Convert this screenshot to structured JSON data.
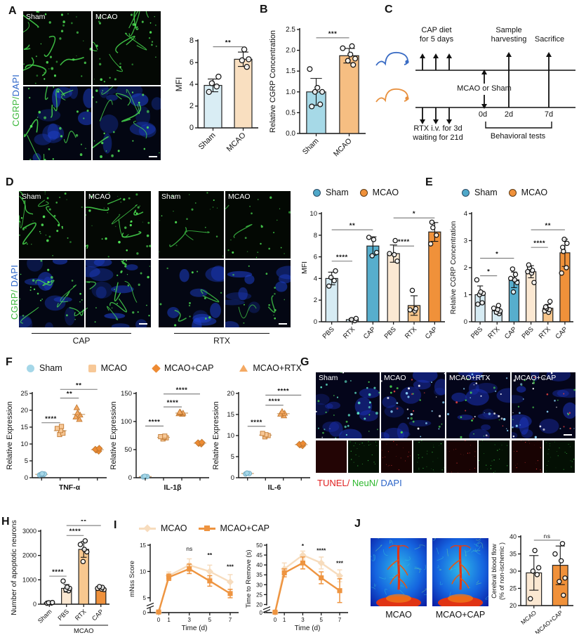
{
  "colors": {
    "sham_light_blue": "#d6ebf3",
    "sham_solid_blue": "#57aecd",
    "sham_legend_blue": "#4fa8c9",
    "mcao_pale_orange": "#fbe8d2",
    "mcao_mid_orange": "#f7c68c",
    "mcao_solid_orange": "#f0913a",
    "line_light": "#f7dcbd",
    "line_dark": "#ee9440",
    "cgrp_green": "#3cb83c",
    "dapi_blue": "#2b64c8",
    "tunel_red": "#e02020",
    "neun_green": "#2db82d",
    "sig_line_gray": "#777",
    "axis_black": "#111"
  },
  "panels": {
    "A": {
      "label": "A",
      "img_labels": [
        "Sham",
        "MCAO"
      ],
      "side": {
        "cgrp": "CGRP/",
        "dapi": "DAPI"
      }
    },
    "B": {
      "label": "B"
    },
    "C": {
      "label": "C",
      "texts": {
        "cap1": "CAP diet",
        "cap2": "for 5 days",
        "sample1": "Sample",
        "sample2": "harvesting",
        "sacrifice": "Sacrifice",
        "mcao": "MCAO or Sham",
        "rtx1": "RTX i.v. for 3d",
        "rtx2": "waiting for 21d",
        "d0": "0d",
        "d2": "2d",
        "d7": "7d",
        "behav": "Behavioral tests"
      }
    },
    "D": {
      "label": "D",
      "img_labels": [
        "Sham",
        "MCAO",
        "Sham",
        "MCAO"
      ],
      "side": {
        "cgrp": "CGRP/",
        "dapi": "DAPI"
      },
      "groups": [
        {
          "label": "CAP"
        },
        {
          "label": "RTX"
        }
      ]
    },
    "E": {
      "label": "E"
    },
    "F": {
      "label": "F"
    },
    "G": {
      "label": "G",
      "img_labels": [
        "Sham",
        "MCAO",
        "MCAO+RTX",
        "MCAO+CAP"
      ],
      "caption": {
        "tunel": "TUNEL/",
        "neun": "NeuN/",
        "dapi": "DAPI"
      }
    },
    "H": {
      "label": "H"
    },
    "I": {
      "label": "I"
    },
    "J": {
      "label": "J",
      "img_labels": [
        "MCAO",
        "MCAO+CAP"
      ]
    }
  },
  "legends": {
    "d": {
      "items": [
        {
          "label": "Sham",
          "shape": "circle",
          "color": "#4fa8c9",
          "border": "#2b4a63"
        },
        {
          "label": "MCAO",
          "shape": "circle",
          "color": "#f0913a",
          "border": "#5d3a14"
        }
      ]
    },
    "e": {
      "items": [
        {
          "label": "Sham",
          "shape": "circle",
          "color": "#4fa8c9",
          "border": "#2b4a63"
        },
        {
          "label": "MCAO",
          "shape": "circle",
          "color": "#f0913a",
          "border": "#5d3a14"
        }
      ]
    },
    "f": {
      "items": [
        {
          "label": "Sham",
          "shape": "circle",
          "color": "#a5d7e8"
        },
        {
          "label": "MCAO",
          "shape": "square",
          "color": "#f7c897"
        },
        {
          "label": "MCAO+CAP",
          "shape": "diamond",
          "color": "#ee8b33"
        },
        {
          "label": "MCAO+RTX",
          "shape": "triangle",
          "color": "#f4a963"
        }
      ]
    },
    "i": {
      "items": [
        {
          "label": "MCAO",
          "shape": "line-diamond",
          "color": "#f7dcbd"
        },
        {
          "label": "MCAO+CAP",
          "shape": "line-square",
          "color": "#ee9440"
        }
      ]
    }
  },
  "chart_data": [
    {
      "id": "A_MFI",
      "type": "bar",
      "ylabel": "MFI",
      "ylim": [
        0,
        8
      ],
      "yticks": [
        0,
        2,
        4,
        6,
        8
      ],
      "categories": [
        "Sham",
        "MCAO"
      ],
      "values": [
        3.9,
        6.3
      ],
      "points": [
        [
          3.3,
          3.8,
          4.1,
          4.7
        ],
        [
          5.6,
          6.2,
          6.3,
          7.2
        ]
      ],
      "colors": [
        "#d9edf4",
        "#f9dfc0"
      ],
      "xrot": -45,
      "ptR": 3.6,
      "catFont": 11,
      "tickFont": 11,
      "ylabelFont": 12,
      "sig": [
        {
          "a": 0,
          "b": 1,
          "y": 7.45,
          "label": "**"
        }
      ],
      "margins": {
        "l": 32,
        "r": 8,
        "t": 18,
        "b": 50
      }
    },
    {
      "id": "B_CGRP",
      "type": "bar",
      "ylabel": "Relative CGRP Concentration",
      "ylim": [
        0,
        2.5
      ],
      "yticks": [
        "0.0",
        "0.5",
        "1.0",
        "1.5",
        "2.0",
        "2.5"
      ],
      "categories": [
        "Sham",
        "MCAO"
      ],
      "values": [
        1.0,
        1.87
      ],
      "points": [
        [
          0.65,
          0.7,
          1.0,
          1.0,
          1.1,
          1.55
        ],
        [
          1.65,
          1.75,
          1.8,
          1.9,
          2.05,
          2.1
        ]
      ],
      "colors": [
        "#a6d9e7",
        "#f6be82"
      ],
      "xrot": -45,
      "ptR": 3.4,
      "catFont": 10.5,
      "tickFont": 10,
      "ylabelFont": 11,
      "sig": [
        {
          "a": 0,
          "b": 1,
          "y": 2.3,
          "label": "***"
        }
      ],
      "margins": {
        "l": 44,
        "r": 12,
        "t": 14,
        "b": 50
      }
    },
    {
      "id": "D_MFI",
      "type": "bar",
      "ylabel": "MFI",
      "ylim": [
        0,
        10
      ],
      "yticks": [
        0,
        2,
        4,
        6,
        8,
        10
      ],
      "categories": [
        "PBS",
        "RTX",
        "CAP",
        "PBS",
        "RTX",
        "CAP"
      ],
      "values": [
        4.0,
        0.2,
        7.0,
        6.3,
        1.5,
        8.3
      ],
      "points": [
        [
          3.3,
          3.8,
          4.1,
          4.7
        ],
        [
          0.1,
          0.2,
          0.3
        ],
        [
          6.1,
          6.4,
          7.6,
          7.8
        ],
        [
          5.6,
          6.2,
          6.3,
          7.5
        ],
        [
          1.0,
          1.1,
          1.2,
          2.9
        ],
        [
          7.2,
          8.0,
          8.7,
          9.2
        ]
      ],
      "colors": [
        "#d6ebf3",
        "#d6ebf3",
        "#57aecd",
        "#fbe8d2",
        "#f7c68c",
        "#f0913a"
      ],
      "xrot": -45,
      "sig": [
        {
          "a": 0,
          "b": 1,
          "y": 5.6,
          "label": "****"
        },
        {
          "a": 0,
          "b": 2,
          "y": 8.5,
          "label": "**"
        },
        {
          "a": 3,
          "b": 4,
          "y": 7.0,
          "label": "****"
        },
        {
          "a": 3,
          "b": 5,
          "y": 9.6,
          "label": "*"
        }
      ],
      "margins": {
        "l": 30,
        "r": 6,
        "t": 14,
        "b": 44
      }
    },
    {
      "id": "E_CGRP",
      "type": "bar",
      "ylabel": "Relative CGRP Concentration",
      "ylim": [
        0,
        4
      ],
      "yticks": [
        0,
        1,
        2,
        3,
        4
      ],
      "categories": [
        "PBS",
        "RTX",
        "CAP",
        "PBS",
        "RTX",
        "CAP"
      ],
      "values": [
        1.0,
        0.4,
        1.55,
        1.85,
        0.5,
        2.55
      ],
      "points": [
        [
          0.65,
          0.7,
          1.0,
          1.05,
          1.1,
          1.55
        ],
        [
          0.3,
          0.35,
          0.4,
          0.45,
          0.5,
          0.6
        ],
        [
          1.1,
          1.45,
          1.55,
          1.6,
          1.75,
          1.95
        ],
        [
          1.45,
          1.8,
          1.85,
          1.9,
          2.0,
          2.1
        ],
        [
          0.35,
          0.4,
          0.45,
          0.5,
          0.55,
          0.75
        ],
        [
          1.8,
          2.0,
          2.6,
          2.75,
          2.9,
          3.05
        ]
      ],
      "colors": [
        "#d6ebf3",
        "#d6ebf3",
        "#57aecd",
        "#fbe8d2",
        "#f7c68c",
        "#f0913a"
      ],
      "xrot": -45,
      "sig": [
        {
          "a": 0,
          "b": 1,
          "y": 1.7,
          "label": "*"
        },
        {
          "a": 0,
          "b": 2,
          "y": 2.35,
          "label": "*"
        },
        {
          "a": 3,
          "b": 4,
          "y": 2.75,
          "label": "****"
        },
        {
          "a": 3,
          "b": 5,
          "y": 3.4,
          "label": "**"
        }
      ],
      "margins": {
        "l": 32,
        "r": 8,
        "t": 14,
        "b": 44
      },
      "ylabelFont": 10
    },
    {
      "id": "F_TNF",
      "type": "scatter",
      "ylabel": "Relative Expression",
      "xlabel": "TNF-α",
      "ylim": [
        0,
        25
      ],
      "yticks": [
        0,
        5,
        10,
        15,
        20,
        25
      ],
      "categories": [
        "Sham",
        "MCAO",
        "MCAO+RTX",
        "MCAO+CAP"
      ],
      "points": [
        [
          0.8,
          0.9,
          1.0,
          1.1,
          1.2
        ],
        [
          12.8,
          13.2,
          14.0,
          14.6,
          15.2
        ],
        [
          17.3,
          18.0,
          18.6,
          19.2,
          20.8
        ],
        [
          7.9,
          8.2,
          8.4,
          8.7
        ]
      ],
      "markers": [
        "circle",
        "square",
        "triangle",
        "diamond"
      ],
      "mcolors": [
        "#a5d7e8",
        "#f7c897",
        "#f4a963",
        "#ee8b33"
      ],
      "sig": [
        {
          "a": 0,
          "b": 1,
          "y": 16.3,
          "label": "****"
        },
        {
          "a": 1,
          "b": 2,
          "y": 23.6,
          "label": "**"
        },
        {
          "a": 1,
          "b": 3,
          "y": 26.2,
          "label": "**"
        }
      ],
      "margins": {
        "l": 38,
        "r": 6,
        "t": 16,
        "b": 34
      },
      "ylabelFont": 11
    },
    {
      "id": "F_IL1B",
      "type": "scatter",
      "ylabel": "Relative Expression",
      "xlabel": "IL-1β",
      "ylim": [
        0,
        150
      ],
      "yticks": [
        0,
        50,
        100,
        150
      ],
      "categories": [
        "Sham",
        "MCAO",
        "MCAO+RTX",
        "MCAO+CAP"
      ],
      "points": [
        [
          1.5,
          2,
          2.5
        ],
        [
          69,
          71,
          72,
          73,
          74
        ],
        [
          113,
          114,
          115,
          116,
          117
        ],
        [
          60,
          61,
          62,
          63
        ]
      ],
      "markers": [
        "circle",
        "square",
        "triangle",
        "diamond"
      ],
      "mcolors": [
        "#a5d7e8",
        "#f7c897",
        "#f4a963",
        "#ee8b33"
      ],
      "sig": [
        {
          "a": 0,
          "b": 1,
          "y": 92,
          "label": "****"
        },
        {
          "a": 1,
          "b": 2,
          "y": 126,
          "label": "****"
        },
        {
          "a": 1,
          "b": 3,
          "y": 149,
          "label": "****"
        }
      ],
      "margins": {
        "l": 38,
        "r": 6,
        "t": 16,
        "b": 34
      },
      "ylabelFont": 11
    },
    {
      "id": "F_IL6",
      "type": "scatter",
      "ylabel": "Relative Expression",
      "xlabel": "IL-6",
      "ylim": [
        0,
        20
      ],
      "yticks": [
        0,
        5,
        10,
        15,
        20
      ],
      "categories": [
        "Sham",
        "MCAO",
        "MCAO+RTX",
        "MCAO+CAP"
      ],
      "points": [
        [
          0.9,
          1.0,
          1.1
        ],
        [
          9.7,
          10,
          10.2,
          10.5
        ],
        [
          14.7,
          15.1,
          15.3,
          15.7
        ],
        [
          7.6,
          7.8,
          7.9,
          8.1
        ]
      ],
      "markers": [
        "circle",
        "square",
        "triangle",
        "diamond"
      ],
      "mcolors": [
        "#a5d7e8",
        "#f7c897",
        "#f4a963",
        "#ee8b33"
      ],
      "sig": [
        {
          "a": 0,
          "b": 1,
          "y": 12.2,
          "label": "****"
        },
        {
          "a": 1,
          "b": 2,
          "y": 17.2,
          "label": "****"
        },
        {
          "a": 1,
          "b": 3,
          "y": 19.6,
          "label": "****"
        }
      ],
      "margins": {
        "l": 38,
        "r": 6,
        "t": 16,
        "b": 34
      },
      "ylabelFont": 11
    },
    {
      "id": "H_APOP",
      "type": "bar",
      "ylabel": "Number of apoptotic neurons",
      "ylim": [
        0,
        3000
      ],
      "yticks": [
        0,
        1000,
        2000,
        3000
      ],
      "categories": [
        "Sham",
        "PBS",
        "RTX",
        "CAP"
      ],
      "values": [
        60,
        650,
        2250,
        650
      ],
      "points": [
        [
          40,
          50,
          60,
          70
        ],
        [
          550,
          600,
          650,
          700,
          950
        ],
        [
          1750,
          2150,
          2250,
          2450,
          2600
        ],
        [
          600,
          620,
          650,
          690,
          720
        ]
      ],
      "colors": [
        "#1c1c1c",
        "#fbe8d2",
        "#f8c88f",
        "#ef913c"
      ],
      "xrot": -45,
      "catFont": 9,
      "group": {
        "from": 1,
        "to": 3,
        "label": "MCAO"
      },
      "sig": [
        {
          "a": 0,
          "b": 1,
          "y": 1150,
          "label": "****"
        },
        {
          "a": 1,
          "b": 2,
          "y": 2820,
          "label": "****"
        },
        {
          "a": 1,
          "b": 3,
          "y": 3230,
          "label": "**"
        }
      ],
      "margins": {
        "l": 44,
        "r": 6,
        "t": 16,
        "b": 48
      },
      "tickFont": 9,
      "ylabelFont": 10.5
    },
    {
      "id": "I_MNSS",
      "type": "line",
      "ylabel": "mNss Score",
      "xlabel": "Time (d)",
      "ylim": [
        0,
        15
      ],
      "yticks": [
        0,
        5,
        10,
        15
      ],
      "ybreak": {
        "below": 5,
        "frac": 0.22
      },
      "x": [
        0,
        1,
        3,
        5,
        7
      ],
      "series": [
        {
          "name": "MCAO",
          "color": "#f7dcbd",
          "marker": "diamond",
          "values": [
            0.2,
            9.2,
            11.2,
            10.0,
            8.0
          ],
          "err": [
            0.2,
            0.7,
            1.2,
            1.2,
            1.4
          ]
        },
        {
          "name": "MCAO+CAP",
          "color": "#ee9440",
          "marker": "square",
          "values": [
            0.2,
            8.9,
            10.5,
            8.2,
            5.8
          ],
          "err": [
            0.2,
            0.6,
            0.9,
            1.0,
            0.8
          ]
        }
      ],
      "sig": [
        {
          "x": 3,
          "y": 13.9,
          "label": "ns"
        },
        {
          "x": 5,
          "y": 12.7,
          "label": "**"
        },
        {
          "x": 7,
          "y": 10.5,
          "label": "***"
        }
      ],
      "margins": {
        "l": 32,
        "r": 8,
        "t": 12,
        "b": 32
      },
      "tickFont": 8,
      "ylabelFont": 9.5
    },
    {
      "id": "I_TTR",
      "type": "line",
      "ylabel": "Time to Remove (s)",
      "xlabel": "Time (d)",
      "ylim": [
        0,
        50
      ],
      "yticks": [
        0,
        20,
        25,
        30,
        35,
        40,
        45,
        50
      ],
      "ybreak": {
        "below": 20,
        "frac": 0.12
      },
      "x": [
        0,
        1,
        3,
        5,
        7
      ],
      "series": [
        {
          "name": "MCAO",
          "color": "#f7dcbd",
          "marker": "diamond",
          "values": [
            1,
            38,
            45,
            41,
            34.5
          ],
          "err": [
            0.5,
            3,
            2,
            3,
            3
          ]
        },
        {
          "name": "MCAO+CAP",
          "color": "#ee9440",
          "marker": "square",
          "values": [
            1,
            36,
            41,
            33.5,
            27
          ],
          "err": [
            0.5,
            2,
            3,
            3,
            6
          ]
        }
      ],
      "sig": [
        {
          "x": 3,
          "y": 48.6,
          "label": "*"
        },
        {
          "x": 5,
          "y": 46.2,
          "label": "****"
        },
        {
          "x": 7,
          "y": 39.8,
          "label": "***"
        }
      ],
      "margins": {
        "l": 32,
        "r": 10,
        "t": 12,
        "b": 32
      },
      "tickFont": 8,
      "ylabelFont": 9.5
    },
    {
      "id": "J_CBF",
      "type": "bar",
      "ylabel": [
        "Cerebral blood flow",
        "(% of non-ischemic )"
      ],
      "ylim": [
        20,
        40
      ],
      "yticks": [
        20,
        25,
        30,
        35,
        40
      ],
      "categories": [
        "MCAO",
        "MCAO+CAP"
      ],
      "values": [
        29.5,
        31.7
      ],
      "points": [
        [
          22,
          29,
          30,
          31,
          36
        ],
        [
          23,
          27,
          28,
          33,
          35,
          38
        ]
      ],
      "colors": [
        "#fbe8d2",
        "#f0913a"
      ],
      "xrot": -40,
      "catFont": 8.5,
      "sig": [
        {
          "a": 0,
          "b": 1,
          "y": 39.0,
          "label": "ns"
        }
      ],
      "margins": {
        "l": 44,
        "r": 8,
        "t": 14,
        "b": 40
      },
      "tickFont": 9,
      "ylabelFont": 9
    }
  ]
}
